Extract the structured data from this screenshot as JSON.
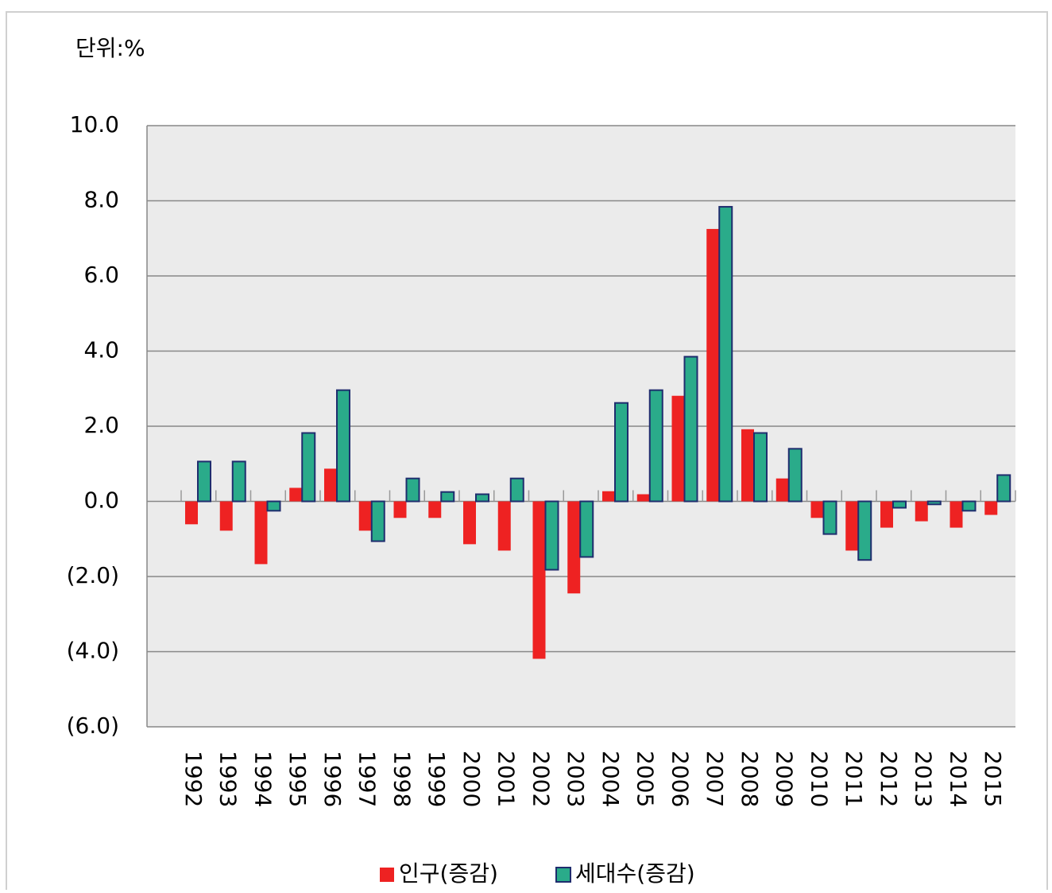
{
  "chart_data": {
    "type": "bar",
    "unit_label": "단위:%",
    "categories": [
      "1992",
      "1993",
      "1994",
      "1995",
      "1996",
      "1997",
      "1998",
      "1999",
      "2000",
      "2001",
      "2002",
      "2003",
      "2004",
      "2005",
      "2006",
      "2007",
      "2008",
      "2009",
      "2010",
      "2011",
      "2012",
      "2013",
      "2014",
      "2015"
    ],
    "series": [
      {
        "name": "인구(증감)",
        "color": "#ee2222",
        "values": [
          -0.61,
          -0.78,
          -1.67,
          0.36,
          0.87,
          -0.78,
          -0.44,
          -0.44,
          -1.14,
          -1.31,
          -4.19,
          -2.45,
          0.27,
          0.19,
          2.81,
          7.25,
          1.92,
          0.61,
          -0.44,
          -1.31,
          -0.7,
          -0.53,
          -0.7,
          -0.36
        ]
      },
      {
        "name": "세대수(증감)",
        "color": "#2aab8a",
        "values": [
          1.06,
          1.06,
          -0.25,
          1.82,
          2.96,
          -1.06,
          0.61,
          0.25,
          0.19,
          0.61,
          -1.82,
          -1.48,
          2.62,
          2.96,
          3.85,
          7.84,
          1.82,
          1.4,
          -0.87,
          -1.56,
          -0.17,
          -0.08,
          -0.25,
          0.7
        ]
      }
    ],
    "ylim": [
      -6,
      10
    ],
    "yticks": [
      {
        "value": -6,
        "label": "(6.0)"
      },
      {
        "value": -4,
        "label": "(4.0)"
      },
      {
        "value": -2,
        "label": "(2.0)"
      },
      {
        "value": 0,
        "label": "0.0"
      },
      {
        "value": 2,
        "label": "2.0"
      },
      {
        "value": 4,
        "label": "4.0"
      },
      {
        "value": 6,
        "label": "6.0"
      },
      {
        "value": 8,
        "label": "8.0"
      },
      {
        "value": 10,
        "label": "10.0"
      }
    ],
    "grid": true,
    "legend": "bottom"
  }
}
